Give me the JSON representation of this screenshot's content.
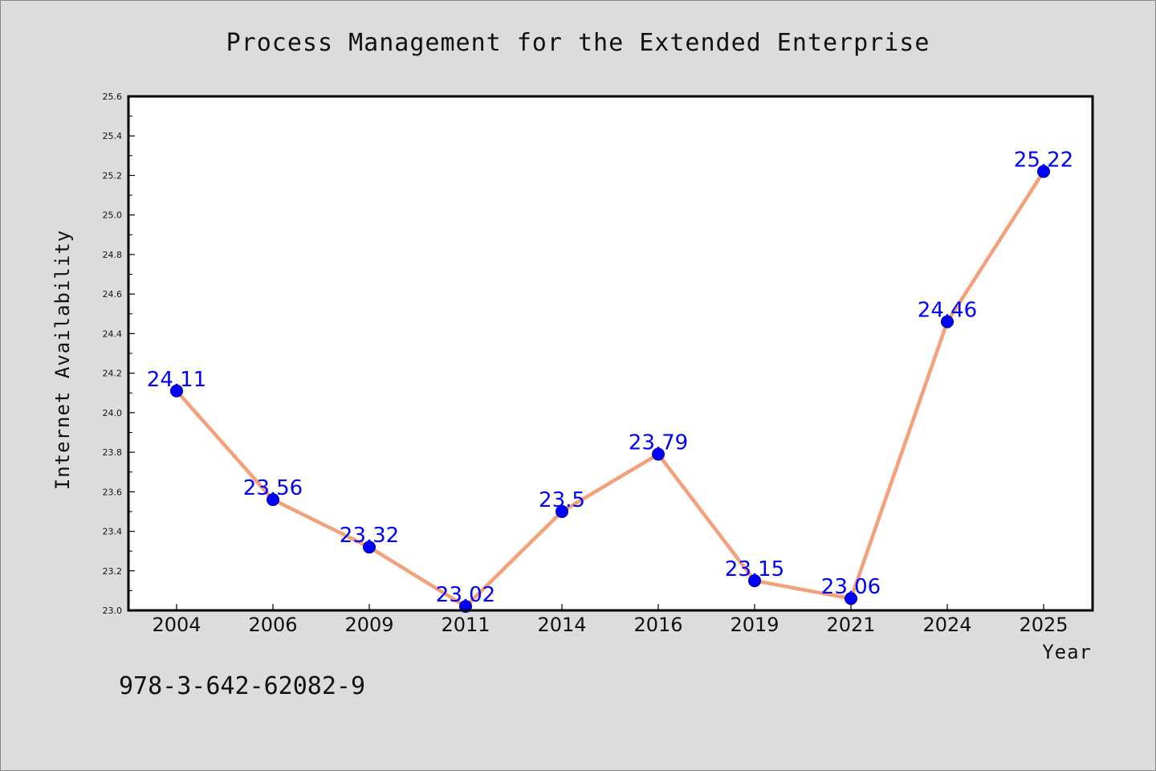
{
  "chart_data": {
    "type": "line",
    "title": "Process Management for the Extended Enterprise",
    "xlabel": "Year",
    "ylabel": "Internet Availability",
    "categories": [
      "2004",
      "2006",
      "2009",
      "2011",
      "2014",
      "2016",
      "2019",
      "2021",
      "2024",
      "2025"
    ],
    "series": [
      {
        "values": [
          24.11,
          23.56,
          23.32,
          23.02,
          23.5,
          23.79,
          23.15,
          23.06,
          24.46,
          25.22
        ],
        "labels": [
          "24.11",
          "23.56",
          "23.32",
          "23.02",
          "23.5",
          "23.79",
          "23.15",
          "23.06",
          "24.46",
          "25.22"
        ],
        "line_color": "#f4a07a",
        "marker_color": "#0000ff"
      }
    ],
    "ylim": [
      23.0,
      25.6
    ],
    "yticks": [
      "23.0",
      "23.2",
      "23.4",
      "23.6",
      "23.8",
      "24.0",
      "24.2",
      "24.4",
      "24.6",
      "24.8",
      "25.0",
      "25.2",
      "25.4",
      "25.6"
    ],
    "grid": false,
    "label_color": "#0000ff"
  },
  "footer": {
    "code": "978-3-642-62082-9"
  },
  "colors": {
    "background": "#dcdcdc",
    "plot_background": "#ffffff"
  }
}
